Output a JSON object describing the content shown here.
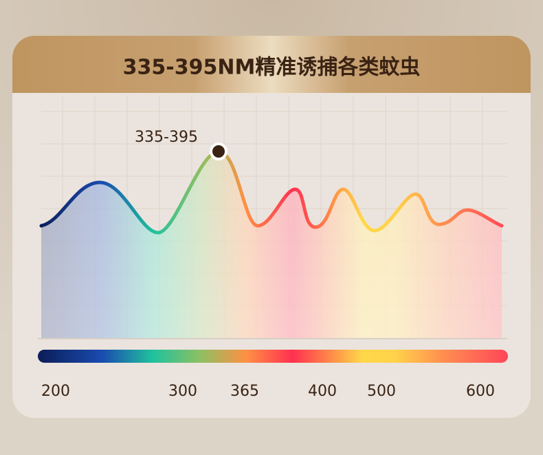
{
  "header": {
    "title": "335-395NM精准诱捕各类蚊虫"
  },
  "chart": {
    "annotation": "335-395",
    "axis_labels": [
      "200",
      "300",
      "365",
      "400",
      "500",
      "600"
    ]
  }
}
